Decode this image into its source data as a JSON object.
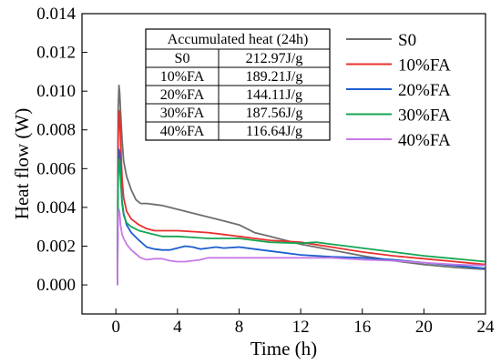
{
  "chart_data": {
    "type": "line",
    "xlabel": "Time (h)",
    "ylabel": "Heat flow (W)",
    "xlim": [
      -2.2,
      24
    ],
    "ylim": [
      -0.0015,
      0.014
    ],
    "xticks": [
      0,
      4,
      8,
      12,
      16,
      20,
      24
    ],
    "xtick_labels": [
      "0",
      "4",
      "8",
      "12",
      "16",
      "20",
      "24"
    ],
    "yticks": [
      0,
      0.002,
      0.004,
      0.006,
      0.008,
      0.01,
      0.012,
      0.014
    ],
    "ytick_labels": [
      "0.000",
      "0.002",
      "0.004",
      "0.006",
      "0.008",
      "0.010",
      "0.012",
      "0.014"
    ],
    "grid": false,
    "legend_position": "top-right",
    "series": [
      {
        "name": "S0",
        "color": "#6e6e6e",
        "x": [
          0.1,
          0.15,
          0.2,
          0.25,
          0.3,
          0.4,
          0.5,
          0.7,
          1.0,
          1.3,
          1.6,
          2.0,
          2.5,
          3.0,
          4.0,
          5.0,
          6.0,
          7.0,
          8.0,
          9.0,
          10.0,
          12.0,
          14.0,
          16.0,
          18.0,
          20.0,
          22.0,
          24.0
        ],
        "y": [
          0.0,
          0.009,
          0.0103,
          0.0099,
          0.009,
          0.0075,
          0.0064,
          0.0056,
          0.0049,
          0.0044,
          0.0042,
          0.0042,
          0.00415,
          0.0041,
          0.0039,
          0.0037,
          0.0035,
          0.0033,
          0.0031,
          0.0027,
          0.0025,
          0.0021,
          0.0018,
          0.0015,
          0.00125,
          0.00105,
          0.0009,
          0.0008
        ]
      },
      {
        "name": "10%FA",
        "color": "#e8302e",
        "x": [
          0.1,
          0.15,
          0.2,
          0.25,
          0.3,
          0.4,
          0.5,
          0.7,
          1.0,
          1.5,
          2.0,
          2.5,
          3.0,
          4.0,
          5.0,
          6.0,
          7.0,
          8.0,
          9.0,
          10.0,
          12.0,
          14.0,
          16.0,
          18.0,
          20.0,
          22.0,
          24.0
        ],
        "y": [
          0.0,
          0.0075,
          0.009,
          0.0088,
          0.0075,
          0.0055,
          0.0045,
          0.0038,
          0.0034,
          0.0031,
          0.0029,
          0.0028,
          0.0028,
          0.0028,
          0.00275,
          0.0027,
          0.0026,
          0.0025,
          0.0024,
          0.0023,
          0.0022,
          0.00195,
          0.0017,
          0.0015,
          0.00135,
          0.0012,
          0.00105
        ]
      },
      {
        "name": "20%FA",
        "color": "#1b5fce",
        "x": [
          0.1,
          0.15,
          0.2,
          0.25,
          0.3,
          0.4,
          0.5,
          0.7,
          1.0,
          1.5,
          2.0,
          2.5,
          3.0,
          3.5,
          4.0,
          4.5,
          5.0,
          5.5,
          6.0,
          6.5,
          7.0,
          8.0,
          9.0,
          10.0,
          12.0,
          14.0,
          16.0,
          18.0,
          20.0,
          22.0,
          24.0
        ],
        "y": [
          0.0,
          0.0055,
          0.007,
          0.0068,
          0.0058,
          0.0043,
          0.0037,
          0.0031,
          0.0027,
          0.0023,
          0.00195,
          0.00185,
          0.0018,
          0.0018,
          0.0019,
          0.002,
          0.00195,
          0.00185,
          0.0019,
          0.00195,
          0.0019,
          0.00195,
          0.00185,
          0.00175,
          0.00155,
          0.00145,
          0.0014,
          0.0013,
          0.00115,
          0.001,
          0.00085
        ]
      },
      {
        "name": "30%FA",
        "color": "#14a653",
        "x": [
          0.1,
          0.15,
          0.2,
          0.25,
          0.3,
          0.4,
          0.5,
          0.7,
          1.0,
          1.5,
          2.0,
          2.5,
          3.0,
          4.0,
          5.0,
          6.0,
          7.0,
          8.0,
          9.0,
          10.0,
          12.0,
          13.0,
          14.0,
          16.0,
          18.0,
          20.0,
          22.0,
          24.0
        ],
        "y": [
          0.0,
          0.0055,
          0.0065,
          0.0064,
          0.0055,
          0.0042,
          0.0036,
          0.0032,
          0.003,
          0.0028,
          0.0027,
          0.0026,
          0.0025,
          0.0025,
          0.00245,
          0.0024,
          0.0024,
          0.0024,
          0.0023,
          0.0022,
          0.00215,
          0.0022,
          0.0021,
          0.0019,
          0.0017,
          0.0015,
          0.00135,
          0.0012
        ]
      },
      {
        "name": "40%FA",
        "color": "#c77ae6",
        "x": [
          0.1,
          0.15,
          0.2,
          0.25,
          0.3,
          0.4,
          0.5,
          0.7,
          1.0,
          1.3,
          1.6,
          2.0,
          2.5,
          3.0,
          3.5,
          4.0,
          4.5,
          5.0,
          5.5,
          6.0,
          7.0,
          8.0,
          10.0,
          12.0,
          14.0,
          16.0,
          18.0,
          20.0,
          22.0,
          24.0
        ],
        "y": [
          0.0,
          0.0035,
          0.0039,
          0.0037,
          0.0031,
          0.0026,
          0.0024,
          0.0021,
          0.0018,
          0.0016,
          0.0014,
          0.0013,
          0.00135,
          0.00135,
          0.00125,
          0.0012,
          0.0012,
          0.00125,
          0.0013,
          0.0014,
          0.0014,
          0.0014,
          0.0014,
          0.0014,
          0.0014,
          0.0013,
          0.00125,
          0.00115,
          0.00105,
          0.001
        ]
      }
    ],
    "annotation_table": {
      "header": "Accumulated heat (24h)",
      "rows": [
        {
          "label": "S0",
          "value": "212.97J/g"
        },
        {
          "label": "10%FA",
          "value": "189.21J/g"
        },
        {
          "label": "20%FA",
          "value": "144.11J/g"
        },
        {
          "label": "30%FA",
          "value": "187.56J/g"
        },
        {
          "label": "40%FA",
          "value": "116.64J/g"
        }
      ]
    }
  }
}
